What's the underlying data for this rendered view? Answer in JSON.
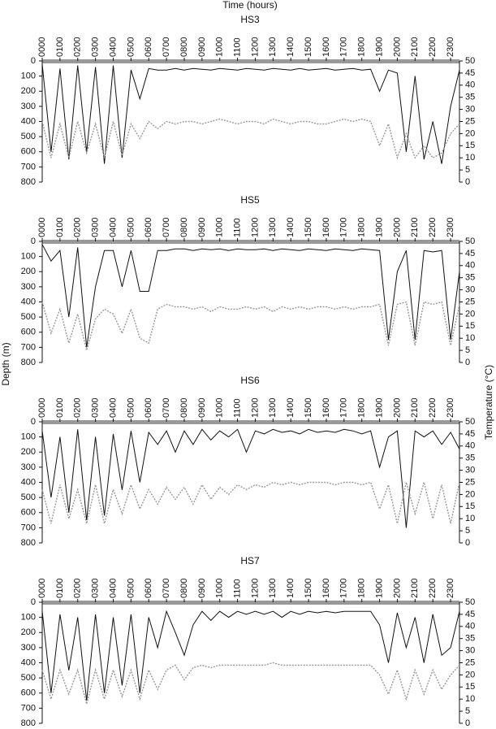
{
  "xlabel": "Time (hours)",
  "ylabel": "Depth (m)",
  "y2label": "Temperature (°C)",
  "chart_data": [
    {
      "type": "line",
      "title": "HS3",
      "x": [
        0,
        0.5,
        1,
        1.5,
        2,
        2.5,
        3,
        3.5,
        4,
        4.5,
        5,
        5.5,
        6,
        6.5,
        7,
        7.5,
        8,
        8.5,
        9,
        9.5,
        10,
        10.5,
        11,
        11.5,
        12,
        12.5,
        13,
        13.5,
        14,
        14.5,
        15,
        15.5,
        16,
        16.5,
        17,
        17.5,
        18,
        18.5,
        19,
        19.5,
        20,
        20.5,
        21,
        21.5,
        22,
        22.5,
        23,
        23.5
      ],
      "series": [
        {
          "color": "#111111",
          "axis": "y",
          "values": [
            20,
            600,
            50,
            650,
            30,
            600,
            40,
            680,
            30,
            640,
            60,
            250,
            50,
            60,
            60,
            50,
            60,
            50,
            55,
            60,
            50,
            55,
            60,
            50,
            55,
            60,
            50,
            55,
            60,
            50,
            60,
            55,
            50,
            60,
            55,
            50,
            60,
            55,
            200,
            60,
            80,
            600,
            100,
            650,
            400,
            680,
            300,
            60
          ]
        },
        {
          "color": "#999999",
          "axis": "y2",
          "values": [
            25,
            10,
            24,
            10,
            25,
            12,
            24,
            10,
            25,
            11,
            24,
            18,
            25,
            22,
            25,
            24,
            25,
            25,
            24,
            25,
            26,
            25,
            24,
            25,
            25,
            24,
            26,
            25,
            24,
            25,
            25,
            24,
            24,
            25,
            26,
            25,
            26,
            25,
            15,
            24,
            10,
            20,
            10,
            15,
            10,
            12,
            20,
            24
          ]
        }
      ],
      "xlim": [
        0,
        23.5
      ],
      "xticks": [
        {
          "value": 0,
          "label": "0000"
        },
        {
          "value": 1,
          "label": "0100"
        },
        {
          "value": 2,
          "label": "0200"
        },
        {
          "value": 3,
          "label": "0300"
        },
        {
          "value": 4,
          "label": "0400"
        },
        {
          "value": 5,
          "label": "0500"
        },
        {
          "value": 6,
          "label": "0600"
        },
        {
          "value": 7,
          "label": "0700"
        },
        {
          "value": 8,
          "label": "0800"
        },
        {
          "value": 9,
          "label": "0900"
        },
        {
          "value": 10,
          "label": "1000"
        },
        {
          "value": 11,
          "label": "1100"
        },
        {
          "value": 12,
          "label": "1200"
        },
        {
          "value": 13,
          "label": "1300"
        },
        {
          "value": 14,
          "label": "1400"
        },
        {
          "value": 15,
          "label": "1500"
        },
        {
          "value": 16,
          "label": "1600"
        },
        {
          "value": 17,
          "label": "1700"
        },
        {
          "value": 18,
          "label": "1800"
        },
        {
          "value": 19,
          "label": "1900"
        },
        {
          "value": 20,
          "label": "2000"
        },
        {
          "value": 21,
          "label": "2100"
        },
        {
          "value": 22,
          "label": "2200"
        },
        {
          "value": 23,
          "label": "2300"
        }
      ],
      "ylim": [
        0,
        800
      ],
      "yticks": [
        0,
        100,
        200,
        300,
        400,
        500,
        600,
        700,
        800
      ],
      "y2lim": [
        0,
        50
      ],
      "y2ticks": [
        0,
        5,
        10,
        15,
        20,
        25,
        30,
        35,
        40,
        45,
        50
      ]
    },
    {
      "type": "line",
      "title": "HS5",
      "x": [
        0,
        0.5,
        1,
        1.5,
        2,
        2.5,
        3,
        3.5,
        4,
        4.5,
        5,
        5.5,
        6,
        6.5,
        7,
        7.5,
        8,
        8.5,
        9,
        9.5,
        10,
        10.5,
        11,
        11.5,
        12,
        12.5,
        13,
        13.5,
        14,
        14.5,
        15,
        15.5,
        16,
        16.5,
        17,
        17.5,
        18,
        18.5,
        19,
        19.5,
        20,
        20.5,
        21,
        21.5,
        22,
        22.5,
        23,
        23.5
      ],
      "series": [
        {
          "color": "#111111",
          "axis": "y",
          "values": [
            20,
            130,
            60,
            500,
            40,
            700,
            300,
            60,
            60,
            300,
            60,
            330,
            330,
            60,
            60,
            50,
            50,
            60,
            50,
            55,
            50,
            60,
            50,
            55,
            55,
            50,
            60,
            50,
            55,
            60,
            50,
            55,
            60,
            50,
            55,
            60,
            50,
            55,
            60,
            650,
            200,
            60,
            650,
            60,
            70,
            60,
            650,
            200
          ]
        },
        {
          "color": "#999999",
          "axis": "y2",
          "values": [
            25,
            12,
            22,
            8,
            20,
            5,
            18,
            22,
            20,
            12,
            22,
            10,
            8,
            22,
            24,
            23,
            23,
            22,
            23,
            21,
            23,
            22,
            22,
            23,
            22,
            23,
            21,
            23,
            22,
            23,
            22,
            23,
            23,
            22,
            23,
            22,
            23,
            23,
            24,
            7,
            24,
            25,
            7,
            25,
            24,
            25,
            7,
            24
          ]
        }
      ],
      "xlim": [
        0,
        23.5
      ],
      "xticks": [
        {
          "value": 0,
          "label": "0000"
        },
        {
          "value": 1,
          "label": "0100"
        },
        {
          "value": 2,
          "label": "0200"
        },
        {
          "value": 3,
          "label": "0300"
        },
        {
          "value": 4,
          "label": "0400"
        },
        {
          "value": 5,
          "label": "0500"
        },
        {
          "value": 6,
          "label": "0600"
        },
        {
          "value": 7,
          "label": "0700"
        },
        {
          "value": 8,
          "label": "0800"
        },
        {
          "value": 9,
          "label": "0900"
        },
        {
          "value": 10,
          "label": "1000"
        },
        {
          "value": 11,
          "label": "1100"
        },
        {
          "value": 12,
          "label": "1200"
        },
        {
          "value": 13,
          "label": "1300"
        },
        {
          "value": 14,
          "label": "1400"
        },
        {
          "value": 15,
          "label": "1500"
        },
        {
          "value": 16,
          "label": "1600"
        },
        {
          "value": 17,
          "label": "1700"
        },
        {
          "value": 18,
          "label": "1800"
        },
        {
          "value": 19,
          "label": "1900"
        },
        {
          "value": 20,
          "label": "2000"
        },
        {
          "value": 21,
          "label": "2100"
        },
        {
          "value": 22,
          "label": "2200"
        },
        {
          "value": 23,
          "label": "2300"
        }
      ],
      "ylim": [
        0,
        800
      ],
      "yticks": [
        0,
        100,
        200,
        300,
        400,
        500,
        600,
        700,
        800
      ],
      "y2lim": [
        0,
        50
      ],
      "y2ticks": [
        0,
        5,
        10,
        15,
        20,
        25,
        30,
        35,
        40,
        45,
        50
      ]
    },
    {
      "type": "line",
      "title": "HS6",
      "x": [
        0,
        0.5,
        1,
        1.5,
        2,
        2.5,
        3,
        3.5,
        4,
        4.5,
        5,
        5.5,
        6,
        6.5,
        7,
        7.5,
        8,
        8.5,
        9,
        9.5,
        10,
        10.5,
        11,
        11.5,
        12,
        12.5,
        13,
        13.5,
        14,
        14.5,
        15,
        15.5,
        16,
        16.5,
        17,
        17.5,
        18,
        18.5,
        19,
        19.5,
        20,
        20.5,
        21,
        21.5,
        22,
        22.5,
        23,
        23.5
      ],
      "series": [
        {
          "color": "#111111",
          "axis": "y",
          "values": [
            60,
            500,
            100,
            600,
            50,
            650,
            100,
            620,
            80,
            450,
            60,
            400,
            70,
            150,
            60,
            200,
            60,
            150,
            50,
            120,
            60,
            100,
            50,
            200,
            60,
            80,
            50,
            70,
            60,
            80,
            50,
            70,
            60,
            70,
            50,
            60,
            80,
            60,
            300,
            100,
            60,
            700,
            60,
            100,
            60,
            150,
            70,
            180
          ]
        },
        {
          "color": "#999999",
          "axis": "y2",
          "values": [
            22,
            8,
            24,
            10,
            22,
            8,
            24,
            8,
            22,
            12,
            24,
            14,
            22,
            16,
            23,
            18,
            23,
            16,
            24,
            18,
            23,
            20,
            24,
            22,
            24,
            23,
            25,
            24,
            25,
            24,
            25,
            25,
            25,
            24,
            25,
            25,
            24,
            25,
            14,
            24,
            8,
            25,
            12,
            25,
            10,
            24,
            8,
            25
          ]
        }
      ],
      "xlim": [
        0,
        23.5
      ],
      "xticks": [
        {
          "value": 0,
          "label": "0000"
        },
        {
          "value": 1,
          "label": "0100"
        },
        {
          "value": 2,
          "label": "0200"
        },
        {
          "value": 3,
          "label": "0300"
        },
        {
          "value": 4,
          "label": "0400"
        },
        {
          "value": 5,
          "label": "0500"
        },
        {
          "value": 6,
          "label": "0600"
        },
        {
          "value": 7,
          "label": "0700"
        },
        {
          "value": 8,
          "label": "0800"
        },
        {
          "value": 9,
          "label": "0900"
        },
        {
          "value": 10,
          "label": "1000"
        },
        {
          "value": 11,
          "label": "1100"
        },
        {
          "value": 12,
          "label": "1200"
        },
        {
          "value": 13,
          "label": "1300"
        },
        {
          "value": 14,
          "label": "1400"
        },
        {
          "value": 15,
          "label": "1500"
        },
        {
          "value": 16,
          "label": "1600"
        },
        {
          "value": 17,
          "label": "1700"
        },
        {
          "value": 18,
          "label": "1800"
        },
        {
          "value": 19,
          "label": "1900"
        },
        {
          "value": 20,
          "label": "2000"
        },
        {
          "value": 21,
          "label": "2100"
        },
        {
          "value": 22,
          "label": "2200"
        },
        {
          "value": 23,
          "label": "2300"
        }
      ],
      "ylim": [
        0,
        800
      ],
      "yticks": [
        0,
        100,
        200,
        300,
        400,
        500,
        600,
        700,
        800
      ],
      "y2lim": [
        0,
        50
      ],
      "y2ticks": [
        0,
        5,
        10,
        15,
        20,
        25,
        30,
        35,
        40,
        45,
        50
      ]
    },
    {
      "type": "line",
      "title": "HS7",
      "x": [
        0,
        0.5,
        1,
        1.5,
        2,
        2.5,
        3,
        3.5,
        4,
        4.5,
        5,
        5.5,
        6,
        6.5,
        7,
        7.5,
        8,
        8.5,
        9,
        9.5,
        10,
        10.5,
        11,
        11.5,
        12,
        12.5,
        13,
        13.5,
        14,
        14.5,
        15,
        15.5,
        16,
        16.5,
        17,
        17.5,
        18,
        18.5,
        19,
        19.5,
        20,
        20.5,
        21,
        21.5,
        22,
        22.5,
        23,
        23.5
      ],
      "series": [
        {
          "color": "#111111",
          "axis": "y",
          "values": [
            60,
            600,
            80,
            450,
            100,
            650,
            80,
            600,
            100,
            550,
            80,
            600,
            100,
            300,
            60,
            200,
            350,
            150,
            60,
            120,
            60,
            100,
            60,
            80,
            60,
            80,
            60,
            100,
            60,
            80,
            60,
            70,
            60,
            70,
            60,
            60,
            60,
            60,
            150,
            400,
            70,
            300,
            100,
            400,
            80,
            350,
            300,
            60
          ]
        },
        {
          "color": "#999999",
          "axis": "y2",
          "values": [
            22,
            10,
            22,
            12,
            22,
            8,
            22,
            10,
            22,
            11,
            22,
            10,
            22,
            14,
            22,
            24,
            18,
            23,
            24,
            23,
            24,
            24,
            24,
            24,
            24,
            24,
            25,
            24,
            24,
            24,
            24,
            24,
            24,
            24,
            24,
            24,
            24,
            24,
            20,
            12,
            22,
            10,
            22,
            12,
            22,
            14,
            20,
            24
          ]
        }
      ],
      "xlim": [
        0,
        23.5
      ],
      "xticks": [
        {
          "value": 0,
          "label": "0000"
        },
        {
          "value": 1,
          "label": "0100"
        },
        {
          "value": 2,
          "label": "0200"
        },
        {
          "value": 3,
          "label": "0300"
        },
        {
          "value": 4,
          "label": "0400"
        },
        {
          "value": 5,
          "label": "0500"
        },
        {
          "value": 6,
          "label": "0600"
        },
        {
          "value": 7,
          "label": "0700"
        },
        {
          "value": 8,
          "label": "0800"
        },
        {
          "value": 9,
          "label": "0900"
        },
        {
          "value": 10,
          "label": "1000"
        },
        {
          "value": 11,
          "label": "1100"
        },
        {
          "value": 12,
          "label": "1200"
        },
        {
          "value": 13,
          "label": "1300"
        },
        {
          "value": 14,
          "label": "1400"
        },
        {
          "value": 15,
          "label": "1500"
        },
        {
          "value": 16,
          "label": "1600"
        },
        {
          "value": 17,
          "label": "1700"
        },
        {
          "value": 18,
          "label": "1800"
        },
        {
          "value": 19,
          "label": "1900"
        },
        {
          "value": 20,
          "label": "2000"
        },
        {
          "value": 21,
          "label": "2100"
        },
        {
          "value": 22,
          "label": "2200"
        },
        {
          "value": 23,
          "label": "2300"
        }
      ],
      "ylim": [
        0,
        800
      ],
      "yticks": [
        0,
        100,
        200,
        300,
        400,
        500,
        600,
        700,
        800
      ],
      "y2lim": [
        0,
        50
      ],
      "y2ticks": [
        0,
        5,
        10,
        15,
        20,
        25,
        30,
        35,
        40,
        45,
        50
      ]
    }
  ]
}
